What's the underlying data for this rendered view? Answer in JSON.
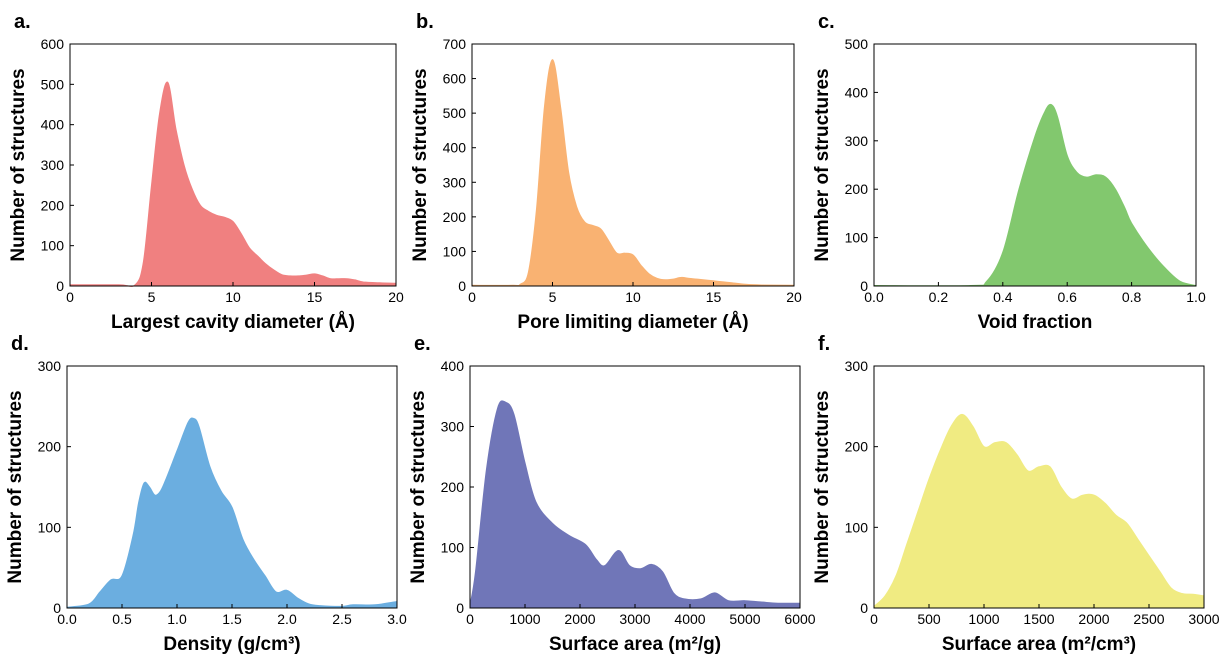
{
  "chart_data": [
    {
      "type": "area",
      "panel_label": "a.",
      "xlabel": "Largest cavity diameter (Å)",
      "ylabel": "Number of structures",
      "color": "#F08080",
      "xlim": [
        0,
        20
      ],
      "ylim": [
        0,
        600
      ],
      "xticks": [
        0,
        5,
        10,
        15,
        20
      ],
      "yticks": [
        0,
        100,
        200,
        300,
        400,
        500,
        600
      ],
      "xtick_labels": [
        "0",
        "5",
        "10",
        "15",
        "20"
      ],
      "ytick_labels": [
        "0",
        "100",
        "200",
        "300",
        "400",
        "500",
        "600"
      ],
      "series": [
        {
          "x": [
            0,
            3,
            4,
            4.5,
            5,
            5.5,
            6,
            6.5,
            7,
            7.5,
            8,
            8.5,
            9,
            9.5,
            10,
            10.5,
            11,
            11.5,
            12,
            12.5,
            13,
            13.5,
            14,
            14.5,
            15,
            15.5,
            16,
            16.5,
            17,
            17.5,
            18,
            19,
            20
          ],
          "values": [
            3,
            3,
            3,
            60,
            250,
            430,
            505,
            390,
            300,
            240,
            200,
            185,
            175,
            170,
            160,
            130,
            95,
            75,
            55,
            40,
            28,
            25,
            25,
            27,
            30,
            25,
            18,
            18,
            18,
            15,
            10,
            8,
            7
          ]
        }
      ]
    },
    {
      "type": "area",
      "panel_label": "b.",
      "xlabel": "Pore limiting diameter (Å)",
      "ylabel": "Number of structures",
      "color": "#F9B272",
      "xlim": [
        0,
        20
      ],
      "ylim": [
        0,
        700
      ],
      "xticks": [
        0,
        5,
        10,
        15,
        20
      ],
      "yticks": [
        0,
        100,
        200,
        300,
        400,
        500,
        600,
        700
      ],
      "xtick_labels": [
        "0",
        "5",
        "10",
        "15",
        "20"
      ],
      "ytick_labels": [
        "0",
        "100",
        "200",
        "300",
        "400",
        "500",
        "600",
        "700"
      ],
      "series": [
        {
          "x": [
            0,
            2.5,
            3,
            3.5,
            4,
            4.5,
            5,
            5.5,
            6,
            6.5,
            7,
            7.5,
            8,
            8.5,
            9,
            9.5,
            10,
            10.5,
            11,
            11.5,
            12,
            12.5,
            13,
            13.5,
            14,
            15,
            16,
            17,
            18,
            20
          ],
          "values": [
            2,
            2,
            5,
            40,
            220,
            520,
            655,
            520,
            330,
            230,
            185,
            175,
            165,
            130,
            95,
            95,
            90,
            60,
            35,
            22,
            18,
            20,
            25,
            22,
            20,
            15,
            10,
            5,
            3,
            2
          ]
        }
      ]
    },
    {
      "type": "area",
      "panel_label": "c.",
      "xlabel": "Void fraction",
      "ylabel": "Number of structures",
      "color": "#82C86E",
      "xlim": [
        0,
        1
      ],
      "ylim": [
        0,
        500
      ],
      "xticks": [
        0,
        0.2,
        0.4,
        0.6,
        0.8,
        1.0
      ],
      "yticks": [
        0,
        100,
        200,
        300,
        400,
        500
      ],
      "xtick_labels": [
        "0.0",
        "0.2",
        "0.4",
        "0.6",
        "0.8",
        "1.0"
      ],
      "ytick_labels": [
        "0",
        "100",
        "200",
        "300",
        "400",
        "500"
      ],
      "series": [
        {
          "x": [
            0,
            0.3,
            0.35,
            0.4,
            0.45,
            0.5,
            0.53,
            0.55,
            0.57,
            0.6,
            0.63,
            0.66,
            0.69,
            0.72,
            0.75,
            0.78,
            0.8,
            0.85,
            0.9,
            0.95,
            1.0
          ],
          "values": [
            1,
            1,
            10,
            70,
            200,
            310,
            360,
            375,
            350,
            270,
            235,
            225,
            230,
            225,
            200,
            160,
            130,
            80,
            40,
            10,
            1
          ]
        }
      ]
    },
    {
      "type": "area",
      "panel_label": "d.",
      "xlabel": "Density (g/cm³)",
      "ylabel": "Number of structures",
      "color": "#6BAEE0",
      "xlim": [
        0,
        3
      ],
      "ylim": [
        0,
        300
      ],
      "xticks": [
        0,
        0.5,
        1.0,
        1.5,
        2.0,
        2.5,
        3.0
      ],
      "yticks": [
        0,
        100,
        200,
        300
      ],
      "xtick_labels": [
        "0.0",
        "0.5",
        "1.0",
        "1.5",
        "2.0",
        "2.5",
        "3.0"
      ],
      "ytick_labels": [
        "0",
        "100",
        "200",
        "300"
      ],
      "series": [
        {
          "x": [
            0,
            0.2,
            0.3,
            0.4,
            0.5,
            0.6,
            0.65,
            0.7,
            0.75,
            0.8,
            0.85,
            0.9,
            1.0,
            1.1,
            1.15,
            1.2,
            1.3,
            1.4,
            1.5,
            1.6,
            1.7,
            1.8,
            1.9,
            2.0,
            2.1,
            2.2,
            2.3,
            2.5,
            2.6,
            2.8,
            3.0
          ],
          "values": [
            1,
            5,
            20,
            35,
            40,
            90,
            130,
            155,
            150,
            140,
            145,
            160,
            195,
            230,
            235,
            225,
            175,
            145,
            125,
            85,
            60,
            40,
            20,
            22,
            12,
            5,
            3,
            2,
            4,
            4,
            8
          ]
        }
      ]
    },
    {
      "type": "area",
      "panel_label": "e.",
      "xlabel": "Surface area (m²/g)",
      "ylabel": "Number of structures",
      "color": "#7076B8",
      "xlim": [
        0,
        6000
      ],
      "ylim": [
        0,
        400
      ],
      "xticks": [
        0,
        1000,
        2000,
        3000,
        4000,
        5000,
        6000
      ],
      "yticks": [
        0,
        100,
        200,
        300,
        400
      ],
      "xtick_labels": [
        "0",
        "1000",
        "2000",
        "3000",
        "4000",
        "5000",
        "6000"
      ],
      "ytick_labels": [
        "0",
        "100",
        "200",
        "300",
        "400"
      ],
      "series": [
        {
          "x": [
            0,
            100,
            300,
            500,
            650,
            800,
            1000,
            1200,
            1500,
            1800,
            2100,
            2300,
            2450,
            2700,
            2900,
            3100,
            3300,
            3500,
            3700,
            3900,
            4200,
            4450,
            4700,
            5000,
            5300,
            5600,
            6000
          ],
          "values": [
            5,
            60,
            230,
            330,
            340,
            320,
            240,
            175,
            140,
            120,
            105,
            80,
            70,
            95,
            70,
            65,
            72,
            60,
            25,
            15,
            15,
            25,
            12,
            12,
            10,
            8,
            8
          ]
        }
      ]
    },
    {
      "type": "area",
      "panel_label": "f.",
      "xlabel": "Surface area (m²/cm³)",
      "ylabel": "Number of structures",
      "color": "#F0EB82",
      "xlim": [
        0,
        3000
      ],
      "ylim": [
        0,
        300
      ],
      "xticks": [
        0,
        500,
        1000,
        1500,
        2000,
        2500,
        3000
      ],
      "yticks": [
        0,
        100,
        200,
        300
      ],
      "xtick_labels": [
        "0",
        "500",
        "1000",
        "1500",
        "2000",
        "2500",
        "3000"
      ],
      "ytick_labels": [
        "0",
        "100",
        "200",
        "300"
      ],
      "series": [
        {
          "x": [
            0,
            100,
            200,
            300,
            400,
            500,
            600,
            700,
            800,
            900,
            1000,
            1100,
            1200,
            1300,
            1400,
            1500,
            1600,
            1700,
            1800,
            1900,
            2000,
            2100,
            2200,
            2300,
            2400,
            2500,
            2600,
            2700,
            2800,
            2900,
            3000
          ],
          "values": [
            2,
            15,
            40,
            80,
            120,
            160,
            195,
            225,
            240,
            225,
            200,
            205,
            205,
            190,
            170,
            175,
            175,
            150,
            135,
            140,
            140,
            130,
            115,
            105,
            85,
            65,
            45,
            25,
            18,
            17,
            15
          ]
        }
      ]
    }
  ]
}
